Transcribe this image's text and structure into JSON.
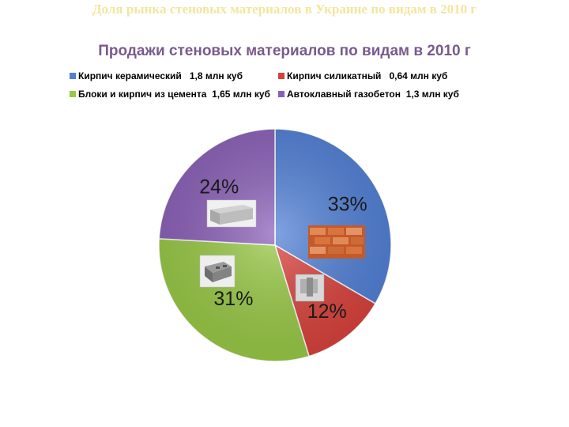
{
  "slide_title": "Доля рынка стеновых материалов в Украине по видам в 2010 г",
  "chart_data": {
    "type": "pie",
    "title": "Продажи стеновых материалов по видам в 2010 г",
    "legend_position": "top",
    "series": [
      {
        "name": "Кирпич керамический",
        "value_label": "1,8 млн куб",
        "value": 1.8,
        "percent_label": "33%",
        "color": "#4f7fd6"
      },
      {
        "name": "Кирпич силикатный",
        "value_label": "0,64 млн куб",
        "value": 0.64,
        "percent_label": "12%",
        "color": "#d9403a"
      },
      {
        "name": "Блоки и кирпич из цемента",
        "value_label": "1,65 млн куб",
        "value": 1.65,
        "percent_label": "31%",
        "color": "#98c944"
      },
      {
        "name": "Автоклавный газобетон",
        "value_label": "1,3 млн куб",
        "value": 1.3,
        "percent_label": "24%",
        "color": "#8a5fb8"
      }
    ]
  },
  "icons": [
    "brick-stack-icon",
    "silicate-brick-icon",
    "cement-block-icon",
    "aerated-block-icon"
  ]
}
